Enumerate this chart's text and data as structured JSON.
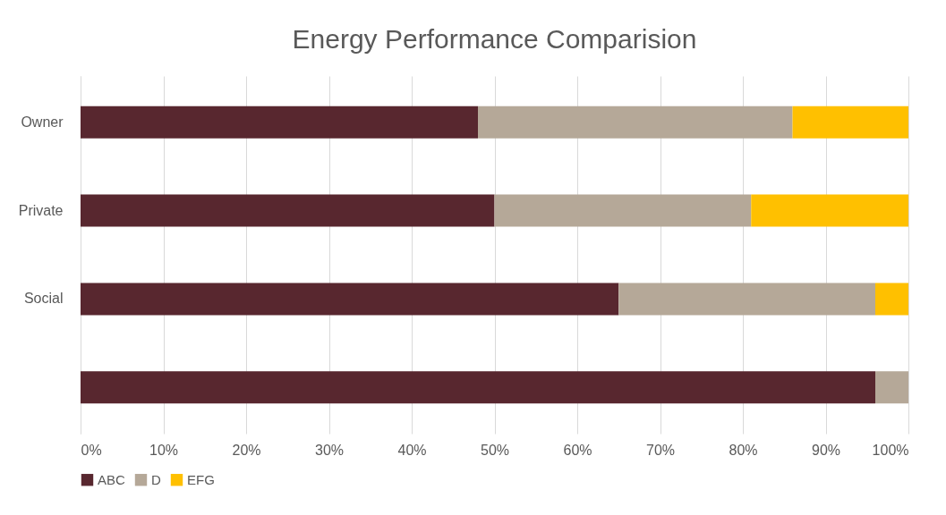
{
  "chart_data": {
    "type": "bar",
    "orientation": "horizontal",
    "stacked": true,
    "title": "Energy Performance Comparision",
    "categories": [
      "Owner",
      "Private",
      "Social",
      null
    ],
    "series": [
      {
        "name": "ABC",
        "color": "#58272f",
        "values": [
          48,
          50,
          65,
          96
        ]
      },
      {
        "name": "D",
        "color": "#b5a898",
        "values": [
          38,
          31,
          31,
          4
        ]
      },
      {
        "name": "EFG",
        "color": "#ffc000",
        "values": [
          14,
          19,
          4,
          0
        ]
      }
    ],
    "xlim": [
      0,
      100
    ],
    "xticks": [
      {
        "value": 0,
        "label": "0%"
      },
      {
        "value": 10,
        "label": "10%"
      },
      {
        "value": 20,
        "label": "20%"
      },
      {
        "value": 30,
        "label": "30%"
      },
      {
        "value": 40,
        "label": "40%"
      },
      {
        "value": 50,
        "label": "50%"
      },
      {
        "value": 60,
        "label": "60%"
      },
      {
        "value": 70,
        "label": "70%"
      },
      {
        "value": 80,
        "label": "80%"
      },
      {
        "value": 90,
        "label": "90%"
      },
      {
        "value": 100,
        "label": "100%"
      }
    ],
    "grid": "x",
    "legend": "bottom"
  }
}
